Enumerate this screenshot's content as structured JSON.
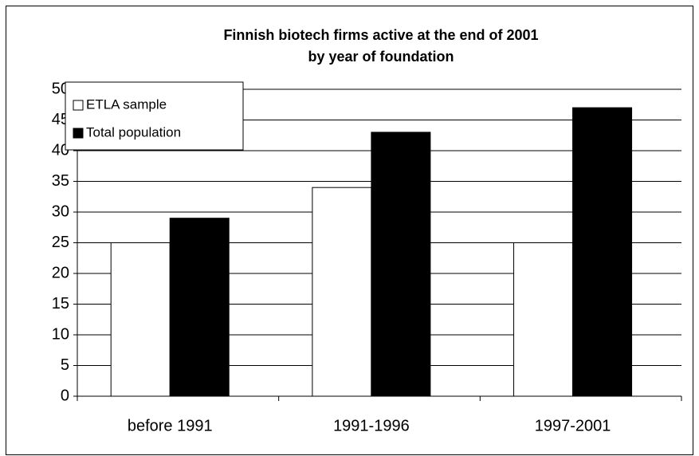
{
  "chart_data": {
    "type": "bar",
    "title": "Finnish biotech firms active at the end of 2001",
    "subtitle": "by year of foundation",
    "categories": [
      "before 1991",
      "1991-1996",
      "1997-2001"
    ],
    "series": [
      {
        "name": "ETLA sample",
        "color": "#ffffff",
        "values": [
          25,
          34,
          25
        ]
      },
      {
        "name": "Total population",
        "color": "#000000",
        "values": [
          29,
          43,
          47
        ]
      }
    ],
    "ylim": [
      0,
      50
    ],
    "yticks": [
      0,
      5,
      10,
      15,
      20,
      25,
      30,
      35,
      40,
      45,
      50
    ],
    "grid": true,
    "legend": "top-left"
  }
}
